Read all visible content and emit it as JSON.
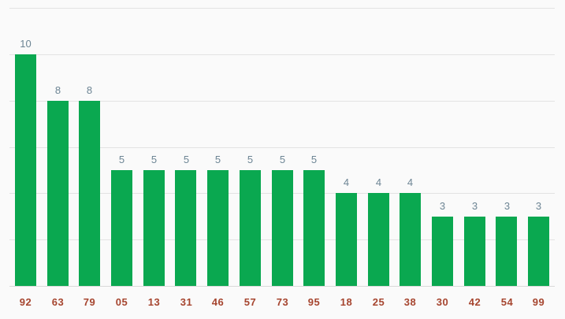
{
  "chart_data": {
    "type": "bar",
    "categories": [
      "92",
      "63",
      "79",
      "05",
      "13",
      "31",
      "46",
      "57",
      "73",
      "95",
      "18",
      "25",
      "38",
      "30",
      "42",
      "54",
      "99"
    ],
    "values": [
      10,
      8,
      8,
      5,
      5,
      5,
      5,
      5,
      5,
      5,
      4,
      4,
      4,
      3,
      3,
      3,
      3
    ],
    "title": "",
    "xlabel": "",
    "ylabel": "",
    "ylim": [
      0,
      12
    ],
    "gridline_step": 2,
    "grid": true,
    "legend": "none",
    "value_labels": [
      "10",
      "8",
      "8",
      "5",
      "5",
      "5",
      "5",
      "5",
      "5",
      "5",
      "4",
      "4",
      "4",
      "3",
      "3",
      "3",
      "3"
    ],
    "colors": {
      "bar": "#0aa850",
      "value_label": "#6d8594",
      "category_label": "#a6452f",
      "gridline": "#e3e3e3",
      "baseline": "#d9d9d9",
      "background": "#fafafa"
    }
  }
}
